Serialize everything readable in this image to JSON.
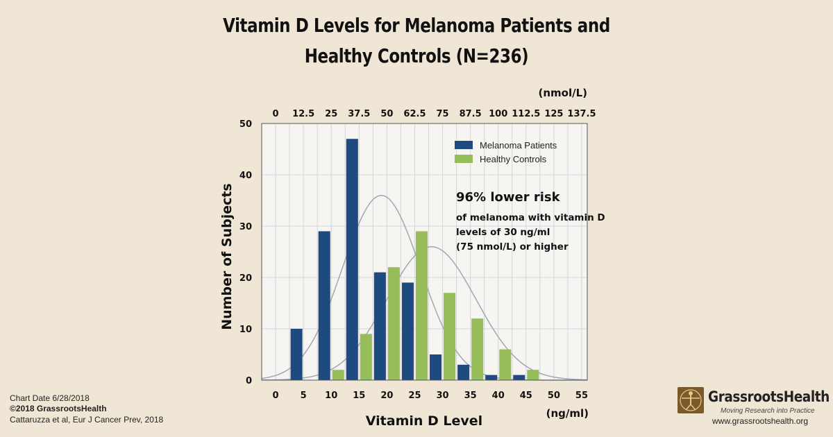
{
  "chart_data": {
    "type": "bar",
    "title_line1": "Vitamin D Levels for Melanoma Patients and",
    "title_line2": "Healthy Controls (N=236)",
    "xlabel": "Vitamin D Level",
    "ylabel": "Number of Subjects",
    "x_unit_bottom": "(ng/ml)",
    "x_unit_top": "(nmol/L)",
    "xlim": [
      -2.5,
      56
    ],
    "ylim": [
      0,
      50
    ],
    "y_ticks": [
      0,
      10,
      20,
      30,
      40,
      50
    ],
    "x_ticks_bottom": [
      "0",
      "5",
      "10",
      "15",
      "20",
      "25",
      "30",
      "35",
      "40",
      "45",
      "50",
      "55"
    ],
    "x_ticks_top": [
      "0",
      "12.5",
      "25",
      "37.5",
      "50",
      "62.5",
      "75",
      "87.5",
      "100",
      "112.5",
      "125",
      "137.5"
    ],
    "grid": true,
    "legend_position": "top-right",
    "series": [
      {
        "name": "Melanoma Patients",
        "color": "#1f4a80",
        "x": [
          5,
          10,
          15,
          20,
          25,
          30,
          35,
          40,
          45
        ],
        "values": [
          10,
          29,
          47,
          21,
          19,
          5,
          3,
          1,
          1
        ]
      },
      {
        "name": "Healthy Controls",
        "color": "#96bd59",
        "x": [
          10,
          15,
          20,
          25,
          30,
          35,
          40,
          45,
          50
        ],
        "values": [
          2,
          9,
          22,
          29,
          17,
          12,
          6,
          2,
          0
        ]
      }
    ],
    "annotation": {
      "line1": "96% lower risk",
      "line2": "of melanoma with vitamin D",
      "line3": "levels of 30 ng/ml",
      "line4": "(75 nmol/L) or higher"
    }
  },
  "footer": {
    "chart_date": "Chart Date 6/28/2018",
    "copyright": "©2018 GrassrootsHealth",
    "citation": "Cattaruzza et al, Eur J Cancer Prev, 2018"
  },
  "logo": {
    "name": "GrassrootsHealth",
    "tagline": "Moving Research into Practice",
    "url": "www.grassrootshealth.org"
  }
}
